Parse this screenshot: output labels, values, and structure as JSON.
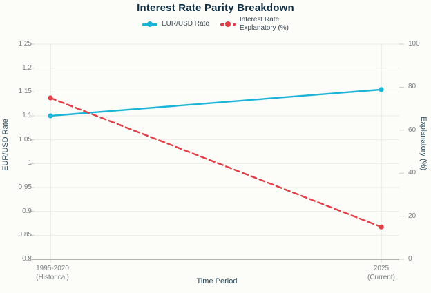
{
  "title": "Interest Rate Parity Breakdown",
  "colors": {
    "eur_usd_line": "#19b4d8",
    "interest_line": "#e63b44",
    "title_text": "#0d2e43"
  },
  "legend": {
    "items": [
      {
        "label": "EUR/USD Rate",
        "style": "solid"
      },
      {
        "label_line1": "Interest Rate",
        "label_line2": "Explanatory (%)",
        "style": "dashed"
      }
    ]
  },
  "axes": {
    "left": {
      "title": "EUR/USD Rate",
      "ticks": [
        "1.25",
        "1.2",
        "1.15",
        "1.1",
        "1.05",
        "1",
        "0.95",
        "0.9",
        "0.85",
        "0.8"
      ]
    },
    "right": {
      "title": "Explanatory (%)",
      "ticks": [
        "100",
        "80",
        "60",
        "40",
        "20",
        "0"
      ]
    },
    "x": {
      "title": "Time Period",
      "categories": [
        {
          "line1": "1995-2020",
          "line2": "(Historical)"
        },
        {
          "line1": "2025",
          "line2": "(Current)"
        }
      ]
    }
  },
  "chart_data": {
    "type": "line",
    "title": "Interest Rate Parity Breakdown",
    "categories": [
      "1995-2020 (Historical)",
      "2025 (Current)"
    ],
    "series": [
      {
        "name": "EUR/USD Rate",
        "axis": "left",
        "values": [
          1.1,
          1.155
        ],
        "color": "#19b4d8",
        "line_style": "solid",
        "marker": "circle"
      },
      {
        "name": "Interest Rate Explanatory (%)",
        "axis": "right",
        "values": [
          75,
          15
        ],
        "color": "#e63b44",
        "line_style": "dashed",
        "marker": "circle"
      }
    ],
    "xlabel": "Time Period",
    "ylabel_left": "EUR/USD Rate",
    "ylabel_right": "Explanatory (%)",
    "ylim_left": [
      0.8,
      1.25
    ],
    "ylim_right": [
      0,
      100
    ],
    "grid": true,
    "legend_position": "top"
  }
}
